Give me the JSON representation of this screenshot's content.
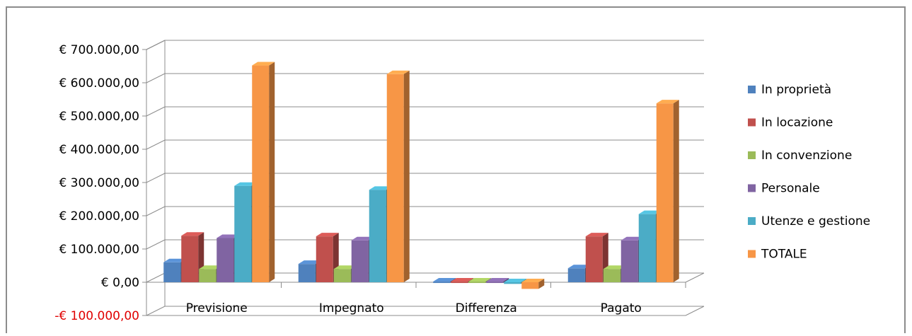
{
  "chart_data": {
    "type": "bar",
    "style": "3d-clustered-column",
    "categories": [
      "Previsione",
      "Impegnato",
      "Differenza",
      "Pagato"
    ],
    "series": [
      {
        "name": "In proprietà",
        "color": "#4f81bd",
        "values": [
          60000,
          55000,
          2000,
          42000
        ]
      },
      {
        "name": "In locazione",
        "color": "#c0504d",
        "values": [
          140000,
          138000,
          2000,
          138000
        ]
      },
      {
        "name": "In convenzione",
        "color": "#9bbb59",
        "values": [
          40000,
          40000,
          2000,
          40000
        ]
      },
      {
        "name": "Personale",
        "color": "#8064a2",
        "values": [
          133000,
          126000,
          2000,
          126000
        ]
      },
      {
        "name": "Utenze e gestione",
        "color": "#4bacc6",
        "values": [
          290000,
          278000,
          -5000,
          205000
        ]
      },
      {
        "name": "TOTALE",
        "color": "#f79646",
        "values": [
          652000,
          626000,
          -20000,
          538000
        ]
      }
    ],
    "y_ticks": [
      "€ 700.000,00",
      "€ 600.000,00",
      "€ 500.000,00",
      "€ 400.000,00",
      "€ 300.000,00",
      "€ 200.000,00",
      "€ 100.000,00",
      "€ 0,00",
      "-€ 100.000,00"
    ],
    "y_tick_values": [
      700000,
      600000,
      500000,
      400000,
      300000,
      200000,
      100000,
      0,
      -100000
    ],
    "ylim": [
      -100000,
      700000
    ],
    "negative_tick_color": "#e00000",
    "grid": true,
    "legend_position": "right",
    "title": "",
    "xlabel": "",
    "ylabel": ""
  }
}
